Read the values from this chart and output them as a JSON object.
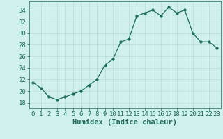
{
  "x": [
    0,
    1,
    2,
    3,
    4,
    5,
    6,
    7,
    8,
    9,
    10,
    11,
    12,
    13,
    14,
    15,
    16,
    17,
    18,
    19,
    20,
    21,
    22,
    23
  ],
  "y": [
    21.5,
    20.5,
    19.0,
    18.5,
    19.0,
    19.5,
    20.0,
    21.0,
    22.0,
    24.5,
    25.5,
    28.5,
    29.0,
    33.0,
    33.5,
    34.0,
    33.0,
    34.5,
    33.5,
    34.0,
    30.0,
    28.5,
    28.5,
    27.5
  ],
  "line_color": "#1a6b5a",
  "marker": "o",
  "marker_size": 2.5,
  "bg_color": "#cff0ec",
  "grid_color": "#b8dbd7",
  "xlabel": "Humidex (Indice chaleur)",
  "xlim": [
    -0.5,
    23.5
  ],
  "ylim": [
    17,
    35.5
  ],
  "yticks": [
    18,
    20,
    22,
    24,
    26,
    28,
    30,
    32,
    34
  ],
  "xticks": [
    0,
    1,
    2,
    3,
    4,
    5,
    6,
    7,
    8,
    9,
    10,
    11,
    12,
    13,
    14,
    15,
    16,
    17,
    18,
    19,
    20,
    21,
    22,
    23
  ],
  "tick_color": "#1a6b5a",
  "tick_fontsize": 6.5,
  "label_fontsize": 7.5
}
